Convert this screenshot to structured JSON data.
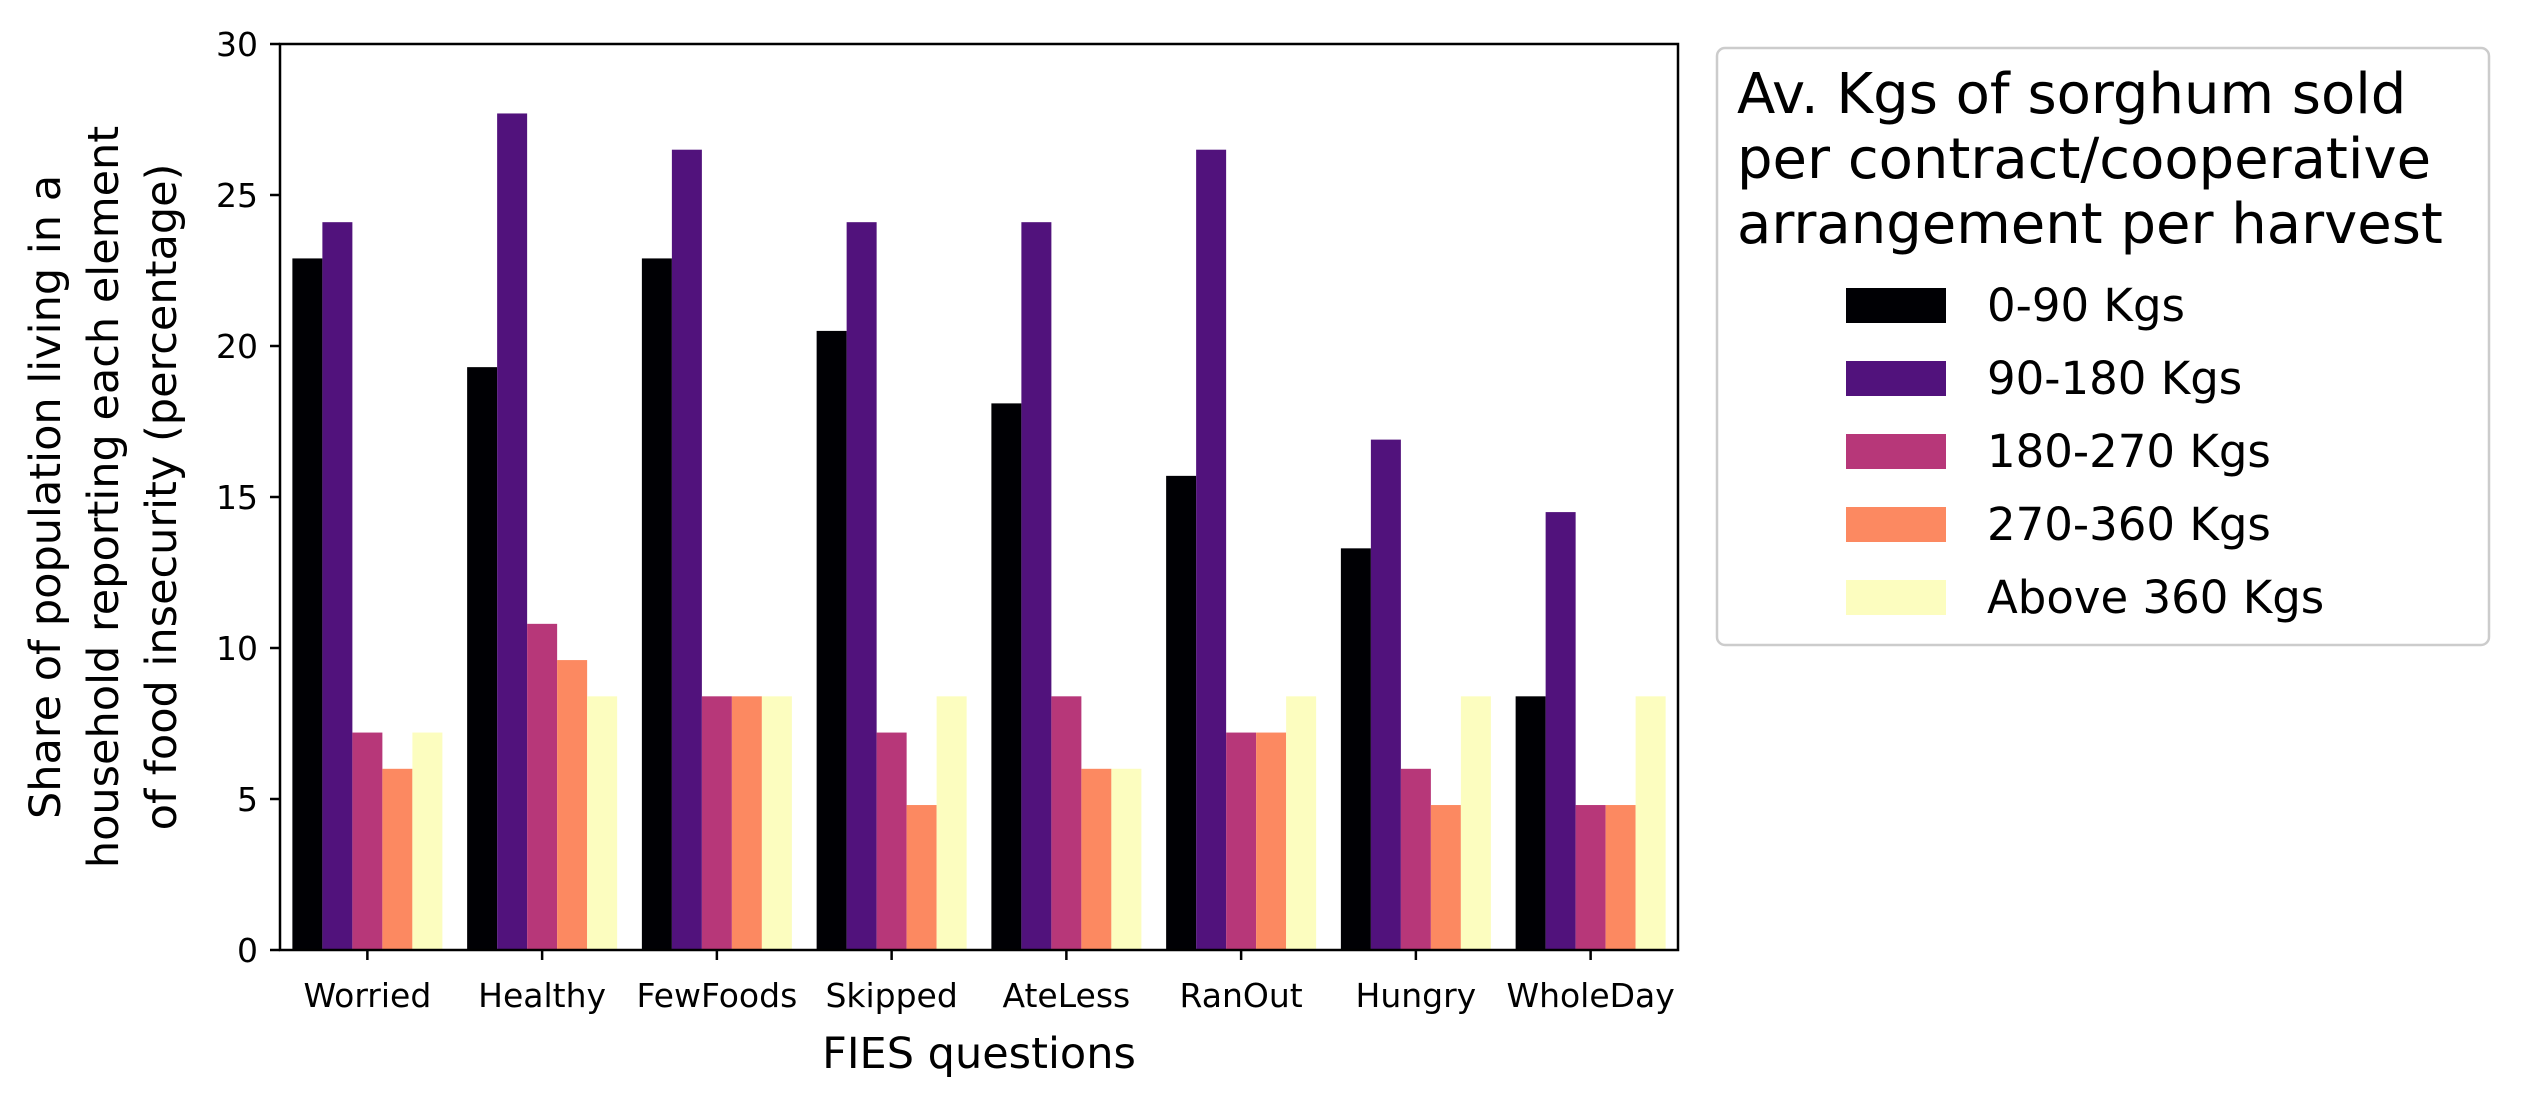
{
  "chart_data": {
    "type": "bar",
    "xlabel": "FIES questions",
    "ylabel_lines": [
      "Share of population living in a",
      "household reporting each element",
      "of food insecurity (percentage)"
    ],
    "ylim": [
      0,
      30
    ],
    "yticks": [
      "0",
      "5",
      "10",
      "15",
      "20",
      "25",
      "30"
    ],
    "categories": [
      "Worried",
      "Healthy",
      "FewFoods",
      "Skipped",
      "AteLess",
      "RanOut",
      "Hungry",
      "WholeDay"
    ],
    "grid": false,
    "legend": {
      "placement": "outside-right",
      "title_lines": [
        "Av. Kgs of sorghum sold",
        "per contract/cooperative",
        "arrangement per harvest"
      ]
    },
    "series": [
      {
        "name": "0-90 Kgs",
        "color": "#000004",
        "values": [
          22.9,
          19.3,
          22.9,
          20.5,
          18.1,
          15.7,
          13.3,
          8.4
        ]
      },
      {
        "name": "90-180 Kgs",
        "color": "#51127c",
        "values": [
          24.1,
          27.7,
          26.5,
          24.1,
          24.1,
          26.5,
          16.9,
          14.5
        ]
      },
      {
        "name": "180-270 Kgs",
        "color": "#b73779",
        "values": [
          7.2,
          10.8,
          8.4,
          7.2,
          8.4,
          7.2,
          6.0,
          4.8
        ]
      },
      {
        "name": "270-360 Kgs",
        "color": "#fc8961",
        "values": [
          6.0,
          9.6,
          8.4,
          4.8,
          6.0,
          7.2,
          4.8,
          4.8
        ]
      },
      {
        "name": "Above 360 Kgs",
        "color": "#fcfdbf",
        "values": [
          7.2,
          8.4,
          8.4,
          8.4,
          6.0,
          8.4,
          8.4,
          8.4
        ]
      }
    ]
  }
}
